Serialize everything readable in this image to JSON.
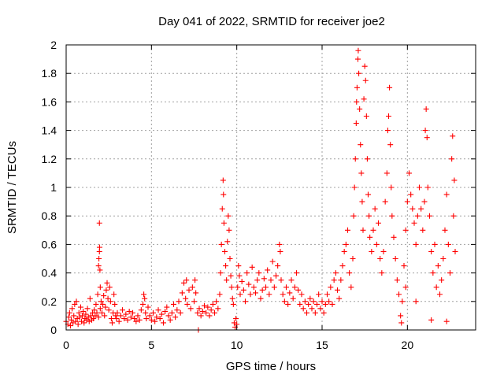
{
  "chart_data": {
    "type": "scatter",
    "title": "Day 041 of 2022, SRMTID for receiver joe2",
    "xlabel": "GPS time / hours",
    "ylabel": "SRMTID / TECUs",
    "xlim": [
      0,
      24
    ],
    "ylim": [
      0,
      2
    ],
    "xticks": [
      0,
      5,
      10,
      15,
      20
    ],
    "xtick_labels": [
      "0",
      "5",
      "10",
      "15",
      "20"
    ],
    "yticks": [
      0,
      0.2,
      0.4,
      0.6,
      0.8,
      1,
      1.2,
      1.4,
      1.6,
      1.8,
      2
    ],
    "ytick_labels": [
      "0",
      "0.2",
      "0.4",
      "0.6",
      "0.8",
      "1",
      "1.2",
      "1.4",
      "1.6",
      "1.8",
      "2"
    ],
    "grid": true,
    "marker": "+",
    "color": "#ff0000",
    "series": [
      {
        "name": "SRMTID",
        "points": [
          [
            0.0,
            0.06
          ],
          [
            0.1,
            0.04
          ],
          [
            0.15,
            0.09
          ],
          [
            0.2,
            0.12
          ],
          [
            0.25,
            0.03
          ],
          [
            0.3,
            0.07
          ],
          [
            0.35,
            0.15
          ],
          [
            0.4,
            0.05
          ],
          [
            0.45,
            0.1
          ],
          [
            0.5,
            0.18
          ],
          [
            0.55,
            0.06
          ],
          [
            0.6,
            0.2
          ],
          [
            0.65,
            0.08
          ],
          [
            0.7,
            0.04
          ],
          [
            0.75,
            0.12
          ],
          [
            0.8,
            0.09
          ],
          [
            0.85,
            0.16
          ],
          [
            0.9,
            0.06
          ],
          [
            0.95,
            0.1
          ],
          [
            1.0,
            0.13
          ],
          [
            1.05,
            0.05
          ],
          [
            1.1,
            0.08
          ],
          [
            1.15,
            0.11
          ],
          [
            1.2,
            0.07
          ],
          [
            1.25,
            0.15
          ],
          [
            1.3,
            0.09
          ],
          [
            1.35,
            0.06
          ],
          [
            1.4,
            0.22
          ],
          [
            1.45,
            0.1
          ],
          [
            1.5,
            0.07
          ],
          [
            1.55,
            0.12
          ],
          [
            1.6,
            0.08
          ],
          [
            1.65,
            0.14
          ],
          [
            1.7,
            0.1
          ],
          [
            1.75,
            0.18
          ],
          [
            1.8,
            0.12
          ],
          [
            1.85,
            0.25
          ],
          [
            1.9,
            0.09
          ],
          [
            1.9,
            0.45
          ],
          [
            1.92,
            0.5
          ],
          [
            1.95,
            0.55
          ],
          [
            1.96,
            0.58
          ],
          [
            1.98,
            0.42
          ],
          [
            1.95,
            0.75
          ],
          [
            2.0,
            0.3
          ],
          [
            2.0,
            0.15
          ],
          [
            2.05,
            0.2
          ],
          [
            2.1,
            0.12
          ],
          [
            2.15,
            0.18
          ],
          [
            2.2,
            0.24
          ],
          [
            2.25,
            0.1
          ],
          [
            2.3,
            0.16
          ],
          [
            2.35,
            0.28
          ],
          [
            2.4,
            0.33
          ],
          [
            2.45,
            0.22
          ],
          [
            2.5,
            0.14
          ],
          [
            2.55,
            0.3
          ],
          [
            2.6,
            0.2
          ],
          [
            2.65,
            0.08
          ],
          [
            2.7,
            0.05
          ],
          [
            2.75,
            0.12
          ],
          [
            2.8,
            0.25
          ],
          [
            2.85,
            0.18
          ],
          [
            2.9,
            0.1
          ],
          [
            2.95,
            0.08
          ],
          [
            3.0,
            0.12
          ],
          [
            3.1,
            0.06
          ],
          [
            3.2,
            0.1
          ],
          [
            3.3,
            0.14
          ],
          [
            3.4,
            0.08
          ],
          [
            3.5,
            0.11
          ],
          [
            3.6,
            0.07
          ],
          [
            3.7,
            0.13
          ],
          [
            3.8,
            0.09
          ],
          [
            3.9,
            0.12
          ],
          [
            4.0,
            0.08
          ],
          [
            4.1,
            0.06
          ],
          [
            4.2,
            0.1
          ],
          [
            4.3,
            0.07
          ],
          [
            4.4,
            0.14
          ],
          [
            4.5,
            0.18
          ],
          [
            4.55,
            0.25
          ],
          [
            4.6,
            0.22
          ],
          [
            4.65,
            0.12
          ],
          [
            4.7,
            0.08
          ],
          [
            4.8,
            0.16
          ],
          [
            4.9,
            0.1
          ],
          [
            5.0,
            0.07
          ],
          [
            5.1,
            0.12
          ],
          [
            5.2,
            0.06
          ],
          [
            5.3,
            0.09
          ],
          [
            5.4,
            0.14
          ],
          [
            5.5,
            0.08
          ],
          [
            5.6,
            0.11
          ],
          [
            5.7,
            0.05
          ],
          [
            5.8,
            0.13
          ],
          [
            5.9,
            0.16
          ],
          [
            6.0,
            0.1
          ],
          [
            6.1,
            0.07
          ],
          [
            6.2,
            0.12
          ],
          [
            6.3,
            0.18
          ],
          [
            6.4,
            0.09
          ],
          [
            6.5,
            0.14
          ],
          [
            6.6,
            0.2
          ],
          [
            6.7,
            0.12
          ],
          [
            6.8,
            0.26
          ],
          [
            6.9,
            0.33
          ],
          [
            7.0,
            0.22
          ],
          [
            7.05,
            0.35
          ],
          [
            7.1,
            0.18
          ],
          [
            7.2,
            0.28
          ],
          [
            7.3,
            0.15
          ],
          [
            7.4,
            0.3
          ],
          [
            7.5,
            0.2
          ],
          [
            7.55,
            0.35
          ],
          [
            7.6,
            0.26
          ],
          [
            7.7,
            0.12
          ],
          [
            7.75,
            0.0
          ],
          [
            7.8,
            0.15
          ],
          [
            7.9,
            0.1
          ],
          [
            8.0,
            0.13
          ],
          [
            8.1,
            0.17
          ],
          [
            8.2,
            0.12
          ],
          [
            8.3,
            0.16
          ],
          [
            8.4,
            0.1
          ],
          [
            8.5,
            0.14
          ],
          [
            8.6,
            0.18
          ],
          [
            8.7,
            0.12
          ],
          [
            8.8,
            0.2
          ],
          [
            8.9,
            0.15
          ],
          [
            9.0,
            0.25
          ],
          [
            9.05,
            0.4
          ],
          [
            9.1,
            0.6
          ],
          [
            9.15,
            0.85
          ],
          [
            9.2,
            1.05
          ],
          [
            9.22,
            0.95
          ],
          [
            9.25,
            0.75
          ],
          [
            9.3,
            0.55
          ],
          [
            9.35,
            0.45
          ],
          [
            9.4,
            0.35
          ],
          [
            9.45,
            0.62
          ],
          [
            9.5,
            0.8
          ],
          [
            9.55,
            0.7
          ],
          [
            9.6,
            0.5
          ],
          [
            9.65,
            0.38
          ],
          [
            9.7,
            0.3
          ],
          [
            9.75,
            0.22
          ],
          [
            9.8,
            0.18
          ],
          [
            9.85,
            0.05
          ],
          [
            9.9,
            0.02
          ],
          [
            9.95,
            0.08
          ],
          [
            10.0,
            0.04
          ],
          [
            10.05,
            0.3
          ],
          [
            10.1,
            0.45
          ],
          [
            10.15,
            0.38
          ],
          [
            10.2,
            0.25
          ],
          [
            10.3,
            0.34
          ],
          [
            10.4,
            0.28
          ],
          [
            10.5,
            0.2
          ],
          [
            10.6,
            0.4
          ],
          [
            10.7,
            0.32
          ],
          [
            10.8,
            0.25
          ],
          [
            10.9,
            0.44
          ],
          [
            11.0,
            0.3
          ],
          [
            11.1,
            0.26
          ],
          [
            11.2,
            0.35
          ],
          [
            11.3,
            0.4
          ],
          [
            11.4,
            0.22
          ],
          [
            11.5,
            0.28
          ],
          [
            11.6,
            0.36
          ],
          [
            11.7,
            0.3
          ],
          [
            11.8,
            0.42
          ],
          [
            11.9,
            0.25
          ],
          [
            12.0,
            0.35
          ],
          [
            12.1,
            0.48
          ],
          [
            12.2,
            0.3
          ],
          [
            12.3,
            0.38
          ],
          [
            12.4,
            0.45
          ],
          [
            12.5,
            0.6
          ],
          [
            12.55,
            0.55
          ],
          [
            12.6,
            0.35
          ],
          [
            12.7,
            0.25
          ],
          [
            12.8,
            0.2
          ],
          [
            12.9,
            0.3
          ],
          [
            13.0,
            0.18
          ],
          [
            13.1,
            0.26
          ],
          [
            13.2,
            0.35
          ],
          [
            13.3,
            0.22
          ],
          [
            13.4,
            0.3
          ],
          [
            13.5,
            0.4
          ],
          [
            13.6,
            0.28
          ],
          [
            13.7,
            0.18
          ],
          [
            13.8,
            0.25
          ],
          [
            13.9,
            0.15
          ],
          [
            14.0,
            0.2
          ],
          [
            14.1,
            0.12
          ],
          [
            14.2,
            0.18
          ],
          [
            14.3,
            0.22
          ],
          [
            14.4,
            0.15
          ],
          [
            14.5,
            0.2
          ],
          [
            14.6,
            0.12
          ],
          [
            14.7,
            0.18
          ],
          [
            14.8,
            0.25
          ],
          [
            14.9,
            0.15
          ],
          [
            15.0,
            0.2
          ],
          [
            15.1,
            0.12
          ],
          [
            15.2,
            0.18
          ],
          [
            15.3,
            0.25
          ],
          [
            15.4,
            0.2
          ],
          [
            15.5,
            0.3
          ],
          [
            15.6,
            0.18
          ],
          [
            15.7,
            0.35
          ],
          [
            15.8,
            0.4
          ],
          [
            15.9,
            0.28
          ],
          [
            16.0,
            0.22
          ],
          [
            16.1,
            0.35
          ],
          [
            16.2,
            0.45
          ],
          [
            16.3,
            0.55
          ],
          [
            16.4,
            0.6
          ],
          [
            16.5,
            0.7
          ],
          [
            16.6,
            0.4
          ],
          [
            16.7,
            0.3
          ],
          [
            16.8,
            0.5
          ],
          [
            16.85,
            0.8
          ],
          [
            16.9,
            1.0
          ],
          [
            16.95,
            1.2
          ],
          [
            17.0,
            1.45
          ],
          [
            17.02,
            1.6
          ],
          [
            17.05,
            1.7
          ],
          [
            17.1,
            1.9
          ],
          [
            17.12,
            1.96
          ],
          [
            17.15,
            1.8
          ],
          [
            17.2,
            1.55
          ],
          [
            17.25,
            1.3
          ],
          [
            17.3,
            1.1
          ],
          [
            17.35,
            0.9
          ],
          [
            17.4,
            0.7
          ],
          [
            17.45,
            1.62
          ],
          [
            17.5,
            1.85
          ],
          [
            17.55,
            1.75
          ],
          [
            17.6,
            1.5
          ],
          [
            17.65,
            1.2
          ],
          [
            17.7,
            0.95
          ],
          [
            17.75,
            0.8
          ],
          [
            17.8,
            0.65
          ],
          [
            17.9,
            0.55
          ],
          [
            18.0,
            0.7
          ],
          [
            18.1,
            0.85
          ],
          [
            18.2,
            0.6
          ],
          [
            18.3,
            0.75
          ],
          [
            18.4,
            0.5
          ],
          [
            18.5,
            0.4
          ],
          [
            18.6,
            0.55
          ],
          [
            18.7,
            0.9
          ],
          [
            18.8,
            1.1
          ],
          [
            18.85,
            1.4
          ],
          [
            18.9,
            1.5
          ],
          [
            18.95,
            1.7
          ],
          [
            19.0,
            1.3
          ],
          [
            19.05,
            1.0
          ],
          [
            19.1,
            0.8
          ],
          [
            19.2,
            0.65
          ],
          [
            19.3,
            0.5
          ],
          [
            19.4,
            0.35
          ],
          [
            19.5,
            0.25
          ],
          [
            19.6,
            0.1
          ],
          [
            19.65,
            0.05
          ],
          [
            19.7,
            0.2
          ],
          [
            19.8,
            0.45
          ],
          [
            19.9,
            0.7
          ],
          [
            20.0,
            0.9
          ],
          [
            20.1,
            1.1
          ],
          [
            20.2,
            0.95
          ],
          [
            20.3,
            0.85
          ],
          [
            20.4,
            0.75
          ],
          [
            20.5,
            0.6
          ],
          [
            20.6,
            0.8
          ],
          [
            20.7,
            1.0
          ],
          [
            20.8,
            0.85
          ],
          [
            20.9,
            0.7
          ],
          [
            21.0,
            0.9
          ],
          [
            21.05,
            1.4
          ],
          [
            21.1,
            1.55
          ],
          [
            21.15,
            1.35
          ],
          [
            21.2,
            1.0
          ],
          [
            21.3,
            0.8
          ],
          [
            21.4,
            0.55
          ],
          [
            21.5,
            0.4
          ],
          [
            21.6,
            0.6
          ],
          [
            21.7,
            0.3
          ],
          [
            21.8,
            0.45
          ],
          [
            21.9,
            0.25
          ],
          [
            22.0,
            0.35
          ],
          [
            22.1,
            0.5
          ],
          [
            22.2,
            0.7
          ],
          [
            22.3,
            0.95
          ],
          [
            22.4,
            0.6
          ],
          [
            22.5,
            0.4
          ],
          [
            22.6,
            1.2
          ],
          [
            22.65,
            1.36
          ],
          [
            22.7,
            0.8
          ],
          [
            22.75,
            1.05
          ],
          [
            22.8,
            0.55
          ],
          [
            22.3,
            0.06
          ],
          [
            21.4,
            0.07
          ],
          [
            20.5,
            0.2
          ],
          [
            19.9,
            0.3
          ]
        ]
      }
    ]
  }
}
